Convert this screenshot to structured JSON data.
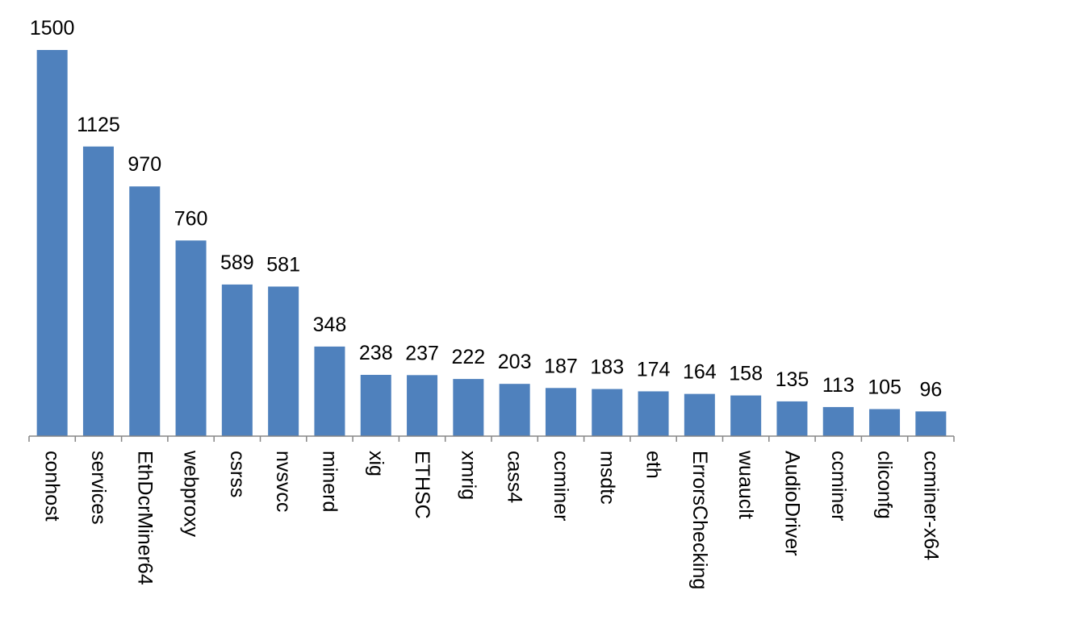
{
  "chart_data": {
    "type": "bar",
    "title": "",
    "xlabel": "",
    "ylabel": "",
    "categories": [
      "conhost",
      "services",
      "EthDcrMiner64",
      "webproxy",
      "csrss",
      "nvsvcc",
      "minerd",
      "xig",
      "ETHSC",
      "xmrig",
      "cass4",
      "ccminer",
      "msdtc",
      "eth",
      "ErrorsChecking",
      "wuauclt",
      "AudioDriver",
      "ccminer",
      "cliconfg",
      "ccminer-x64"
    ],
    "values": [
      1500,
      1125,
      970,
      760,
      589,
      581,
      348,
      238,
      237,
      222,
      203,
      187,
      183,
      174,
      164,
      158,
      135,
      113,
      105,
      96
    ],
    "data_labels": [
      "1500",
      "1125",
      "970",
      "760",
      "589",
      "581",
      "348",
      "238",
      "237",
      "222",
      "203",
      "187",
      "183",
      "174",
      "164",
      "158",
      "135",
      "113",
      "105",
      "96"
    ],
    "ylim": [
      0,
      1500
    ],
    "grid": false,
    "legend": "none",
    "bar_color": "#4F81BD",
    "axis_color": "#868686"
  }
}
